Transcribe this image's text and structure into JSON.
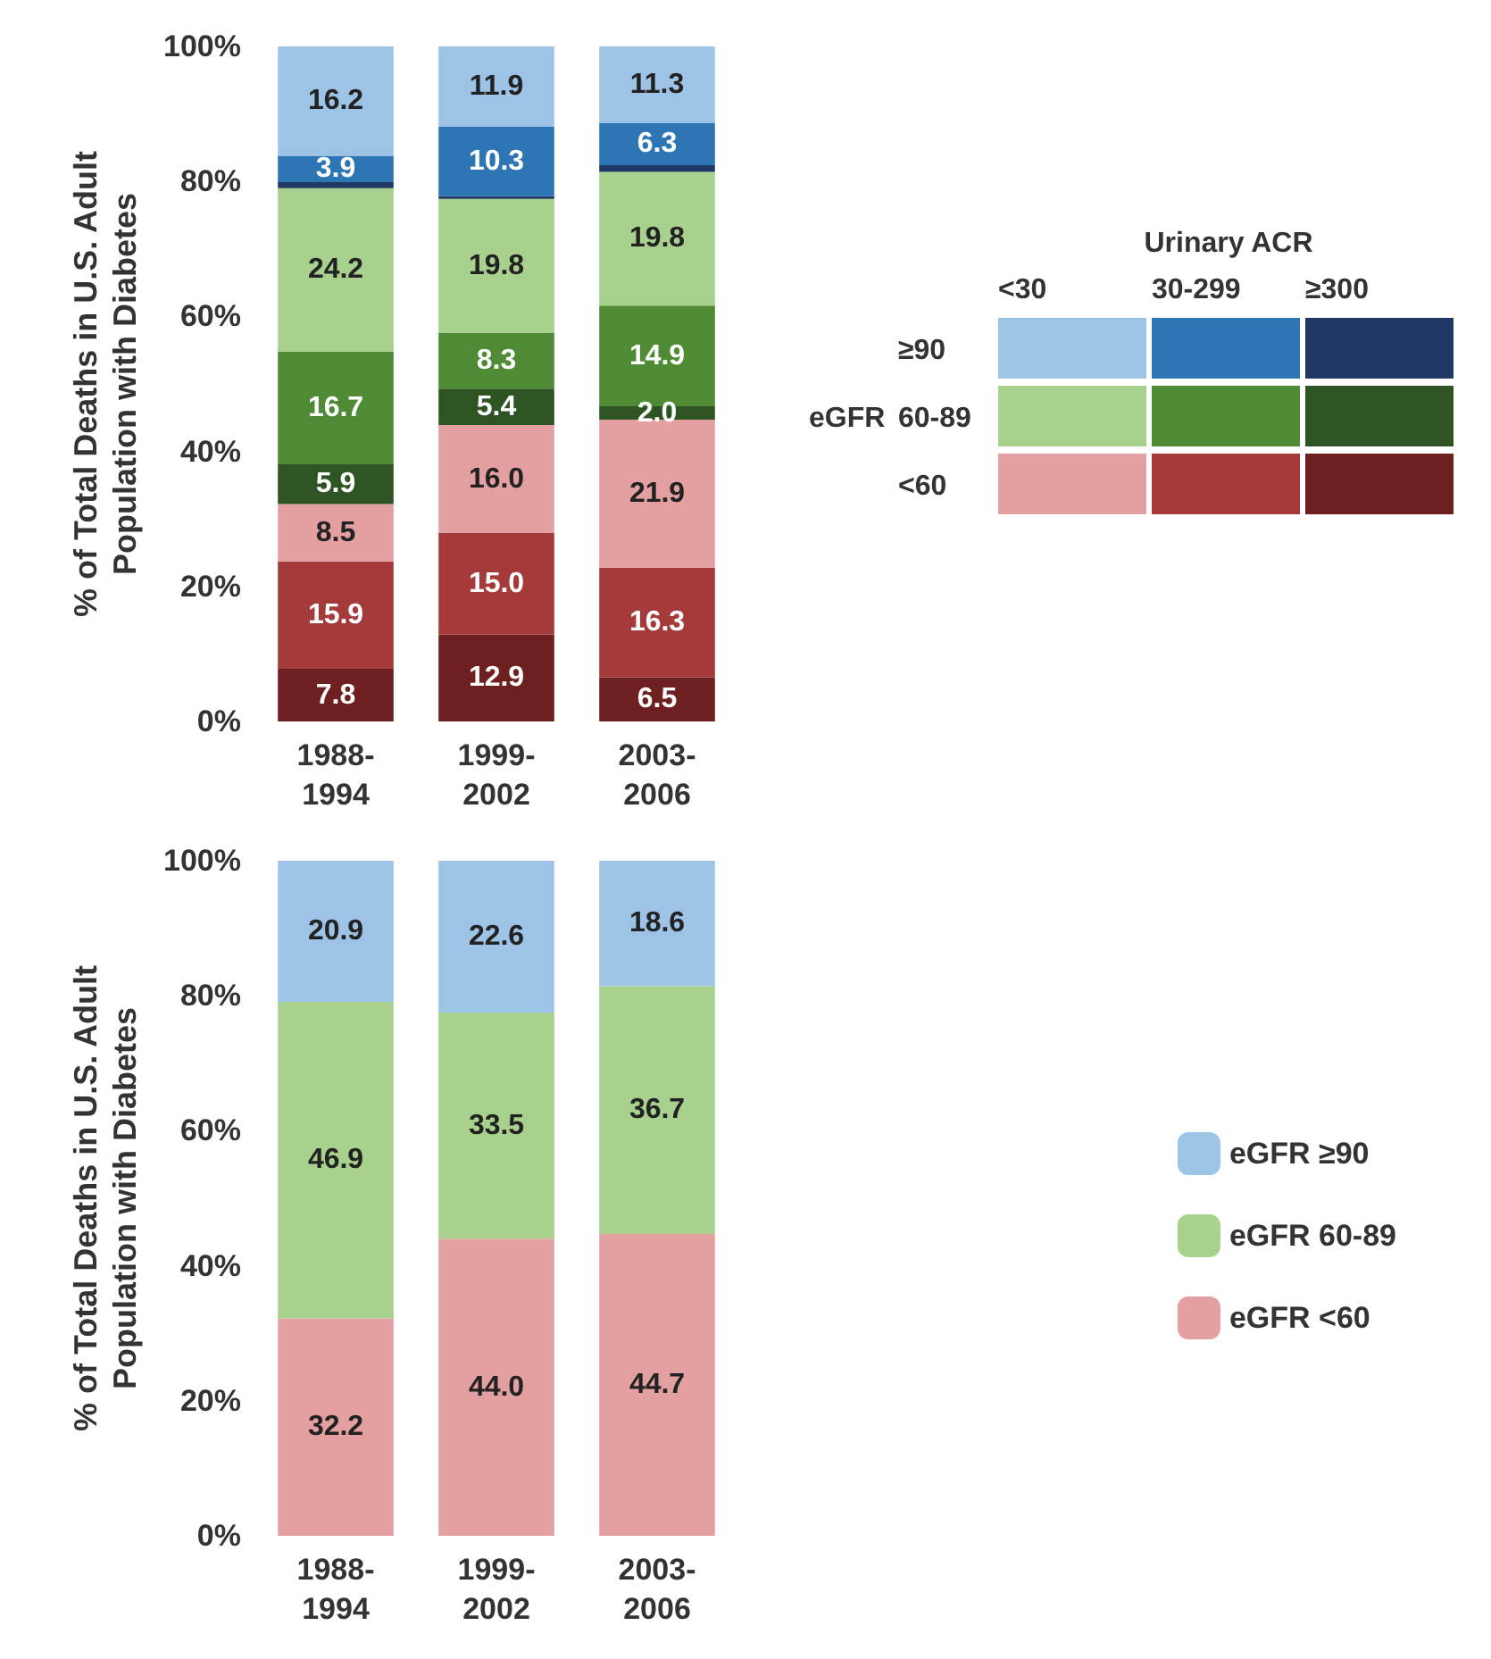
{
  "chart_data": [
    {
      "type": "bar",
      "stacked": true,
      "ylabel": "% of Total Deaths in U.S. Adult\nPopulation with Diabetes",
      "categories": [
        "1988-\n1994",
        "1999-\n2002",
        "2003-\n2006"
      ],
      "ylim": [
        0,
        100
      ],
      "yticks": [
        {
          "value": 0,
          "label": "0%"
        },
        {
          "value": 20,
          "label": "20%"
        },
        {
          "value": 40,
          "label": "40%"
        },
        {
          "value": 60,
          "label": "60%"
        },
        {
          "value": 80,
          "label": "80%"
        },
        {
          "value": 100,
          "label": "100%"
        }
      ],
      "legend": "right",
      "annotations": [
        "Urinary ACR",
        "<30",
        "30-299",
        "≥300",
        "eGFR",
        "≥90",
        "60-89",
        "<60"
      ],
      "series": [
        {
          "color": "#6e2020",
          "values": [
            7.8,
            12.9,
            6.5
          ],
          "value_labels": [
            "7.8",
            "12.9",
            "6.5"
          ]
        },
        {
          "color": "#a53a3a",
          "values": [
            15.9,
            15.0,
            16.3
          ],
          "value_labels": [
            "15.9",
            "15.0",
            "16.3"
          ]
        },
        {
          "color": "#e4a0a0",
          "values": [
            8.5,
            16.0,
            21.9
          ],
          "value_labels": [
            "8.5",
            "16.0",
            "21.9"
          ]
        },
        {
          "color": "#2f5424",
          "values": [
            5.9,
            5.4,
            2.0
          ],
          "value_labels": [
            "5.9",
            "5.4",
            "2.0"
          ]
        },
        {
          "color": "#4f8a35",
          "values": [
            16.7,
            8.3,
            14.9
          ],
          "value_labels": [
            "16.7",
            "8.3",
            "14.9"
          ]
        },
        {
          "color": "#a9d18e",
          "values": [
            24.2,
            19.8,
            19.8
          ],
          "value_labels": [
            "24.2",
            "19.8",
            "19.8"
          ]
        },
        {
          "color": "#1f3864",
          "values": [
            0.9,
            0.4,
            1.0
          ],
          "value_labels": [
            null,
            null,
            null
          ]
        },
        {
          "color": "#2e75b6",
          "values": [
            3.9,
            10.3,
            6.3
          ],
          "value_labels": [
            "3.9",
            "10.3",
            "6.3"
          ]
        },
        {
          "color": "#9dc3e6",
          "values": [
            16.2,
            11.9,
            11.3
          ],
          "value_labels": [
            "16.2",
            "11.9",
            "11.3"
          ]
        }
      ]
    },
    {
      "type": "bar",
      "stacked": true,
      "ylabel": "% of Total Deaths in U.S. Adult\nPopulation with Diabetes",
      "categories": [
        "1988-\n1994",
        "1999-\n2002",
        "2003-\n2006"
      ],
      "ylim": [
        0,
        100
      ],
      "yticks": [
        {
          "value": 0,
          "label": "0%"
        },
        {
          "value": 20,
          "label": "20%"
        },
        {
          "value": 40,
          "label": "40%"
        },
        {
          "value": 60,
          "label": "60%"
        },
        {
          "value": 80,
          "label": "80%"
        },
        {
          "value": 100,
          "label": "100%"
        }
      ],
      "legend": "right",
      "series": [
        {
          "name": "eGFR <60",
          "color": "#e4a0a0",
          "values": [
            32.2,
            44.0,
            44.7
          ],
          "value_labels": [
            "32.2",
            "44.0",
            "44.7"
          ]
        },
        {
          "name": "eGFR 60-89",
          "color": "#a9d18e",
          "values": [
            46.9,
            33.5,
            36.7
          ],
          "value_labels": [
            "46.9",
            "33.5",
            "36.7"
          ]
        },
        {
          "name": "eGFR ≥90",
          "color": "#9dc3e6",
          "values": [
            20.9,
            22.6,
            18.6
          ],
          "value_labels": [
            "20.9",
            "22.6",
            "18.6"
          ]
        }
      ]
    }
  ]
}
